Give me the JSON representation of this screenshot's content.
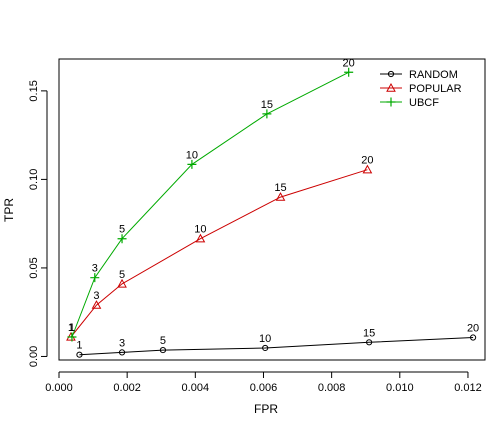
{
  "chart_data": {
    "type": "line",
    "title": "",
    "xlabel": "FPR",
    "ylabel": "TPR",
    "xlim": [
      0.0,
      0.0125
    ],
    "ylim": [
      -0.002,
      0.168
    ],
    "x_ticks": [
      0.0,
      0.002,
      0.004,
      0.006,
      0.008,
      0.01,
      0.012
    ],
    "x_tick_labels": [
      "0.000",
      "0.002",
      "0.004",
      "0.006",
      "0.008",
      "0.010",
      "0.012"
    ],
    "y_ticks": [
      0.0,
      0.05,
      0.1,
      0.15
    ],
    "y_tick_labels": [
      "0.00",
      "0.05",
      "0.10",
      "0.15"
    ],
    "grid": false,
    "legend_position": "top-right",
    "series": [
      {
        "name": "RANDOM",
        "color": "#000000",
        "marker": "circle",
        "points": [
          {
            "label": "1",
            "x": 0.0006,
            "y": 0.001
          },
          {
            "label": "3",
            "x": 0.00185,
            "y": 0.0023
          },
          {
            "label": "5",
            "x": 0.00305,
            "y": 0.0036
          },
          {
            "label": "10",
            "x": 0.00605,
            "y": 0.0048
          },
          {
            "label": "15",
            "x": 0.0091,
            "y": 0.008
          },
          {
            "label": "20",
            "x": 0.01215,
            "y": 0.0107
          }
        ]
      },
      {
        "name": "POPULAR",
        "color": "#cc0000",
        "marker": "triangle",
        "points": [
          {
            "label": "1",
            "x": 0.00035,
            "y": 0.011
          },
          {
            "label": "3",
            "x": 0.0011,
            "y": 0.029
          },
          {
            "label": "5",
            "x": 0.00185,
            "y": 0.041
          },
          {
            "label": "10",
            "x": 0.00415,
            "y": 0.0665
          },
          {
            "label": "15",
            "x": 0.0065,
            "y": 0.09
          },
          {
            "label": "20",
            "x": 0.00905,
            "y": 0.1055
          }
        ]
      },
      {
        "name": "UBCF",
        "color": "#00aa00",
        "marker": "plus",
        "points": [
          {
            "label": "1",
            "x": 0.00038,
            "y": 0.011
          },
          {
            "label": "3",
            "x": 0.00105,
            "y": 0.0445
          },
          {
            "label": "5",
            "x": 0.00185,
            "y": 0.0665
          },
          {
            "label": "10",
            "x": 0.0039,
            "y": 0.1085
          },
          {
            "label": "15",
            "x": 0.0061,
            "y": 0.137
          },
          {
            "label": "20",
            "x": 0.0085,
            "y": 0.1605
          }
        ]
      }
    ]
  }
}
